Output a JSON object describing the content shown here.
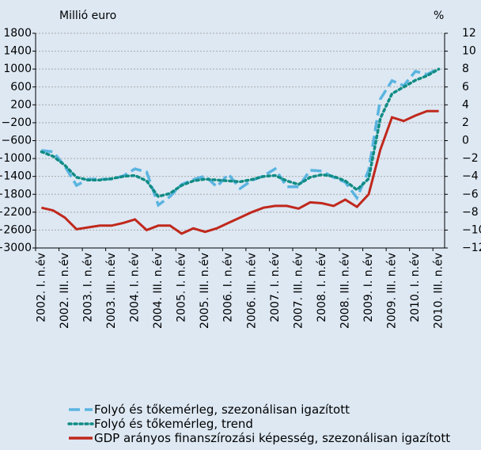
{
  "chart_data": {
    "type": "line",
    "y_label": "Millió euro",
    "y2_label": "%",
    "categories": [
      "2002. I. n.év",
      null,
      "2002. III. n.év",
      null,
      "2003. I. n.év",
      null,
      "2003. III. n.év",
      null,
      "2004. I. n.év",
      null,
      "2004. III. n.év",
      null,
      "2005. I. n.év",
      null,
      "2005. III. n.év",
      null,
      "2006. I. n.év",
      null,
      "2006. III. n.év",
      null,
      "2007. I. n.év",
      null,
      "2007. III. n.év",
      null,
      "2008. I. n.év",
      null,
      "2008. III. n.év",
      null,
      "2009. I. n.év",
      null,
      "2009. III. n.év",
      null,
      "2010. I. n.év",
      null,
      "2010. III. n.év"
    ],
    "series": [
      {
        "name": "Folyó és tőkemérleg, szezonálisan igazított",
        "color": "#5ab4e0",
        "style": "dashed",
        "values": [
          -820,
          -850,
          -1170,
          -1600,
          -1460,
          -1460,
          -1460,
          -1390,
          -1230,
          -1300,
          -2040,
          -1850,
          -1580,
          -1470,
          -1390,
          -1630,
          -1350,
          -1670,
          -1490,
          -1390,
          -1230,
          -1630,
          -1630,
          -1260,
          -1280,
          -1420,
          -1530,
          -1880,
          -1260,
          330,
          740,
          630,
          950,
          880,
          1020
        ]
      },
      {
        "name": "Folyó és tőkemérleg, trend",
        "color": "#108c84",
        "style": "dotted",
        "values": [
          -850,
          -950,
          -1150,
          -1420,
          -1480,
          -1480,
          -1450,
          -1400,
          -1380,
          -1500,
          -1850,
          -1780,
          -1600,
          -1500,
          -1460,
          -1480,
          -1500,
          -1520,
          -1470,
          -1400,
          -1380,
          -1500,
          -1580,
          -1420,
          -1360,
          -1400,
          -1500,
          -1700,
          -1450,
          -100,
          450,
          600,
          750,
          850,
          1000
        ]
      },
      {
        "name": "GDP arányos finanszírozási képesség, szezonálisan igazított",
        "color": "#c0281c",
        "style": "solid",
        "axis": "y2",
        "values": [
          -7.5,
          -7.8,
          -8.6,
          -9.9,
          -9.7,
          -9.5,
          -9.5,
          -9.2,
          -8.8,
          -10.0,
          -9.5,
          -9.5,
          -10.4,
          -9.8,
          -10.2,
          -9.8,
          -9.2,
          -8.6,
          -8.0,
          -7.5,
          -7.3,
          -7.3,
          -7.6,
          -6.9,
          -7.0,
          -7.3,
          -6.6,
          -7.4,
          -6.0,
          -1.0,
          2.6,
          2.2,
          2.8,
          3.3,
          3.3
        ]
      }
    ],
    "ylim": [
      -3000,
      1800
    ],
    "yticks": [
      1800,
      1400,
      1000,
      600,
      200,
      {
        "value": -200,
        "label": "−200"
      },
      {
        "value": -600,
        "label": "−600"
      },
      {
        "value": -1000,
        "label": "−1000"
      },
      {
        "value": -1400,
        "label": "−1400"
      },
      {
        "value": -1800,
        "label": "−1800"
      },
      {
        "value": -2200,
        "label": "−2200"
      },
      {
        "value": -2600,
        "label": "−2600"
      },
      {
        "value": -3000,
        "label": "−3000"
      }
    ],
    "y2lim": [
      -12,
      12
    ],
    "y2ticks": [
      12,
      10,
      8,
      6,
      4,
      2,
      0,
      {
        "value": -2,
        "label": "−2"
      },
      {
        "value": -4,
        "label": "−4"
      },
      {
        "value": -6,
        "label": "−6"
      },
      {
        "value": -8,
        "label": "−8"
      },
      {
        "value": -10,
        "label": "−10"
      },
      {
        "value": -12,
        "label": "−12"
      }
    ],
    "grid": true
  }
}
